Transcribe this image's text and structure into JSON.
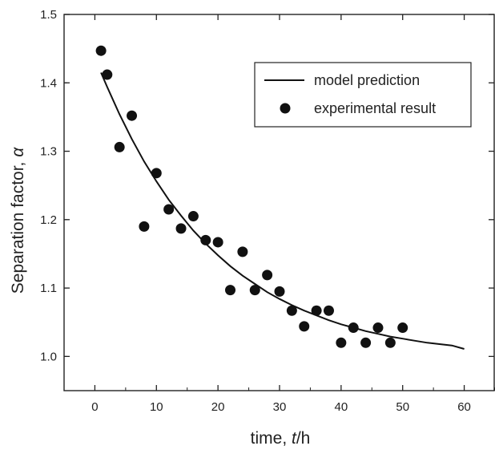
{
  "chart_data": {
    "type": "scatter",
    "title": "",
    "xlabel": {
      "prefix": "time, ",
      "italic": "t",
      "suffix": "/h"
    },
    "ylabel": {
      "prefix": "Separation factor, ",
      "italic": "α"
    },
    "xlim": [
      -5,
      65
    ],
    "ylim": [
      0.95,
      1.5
    ],
    "x_ticks": [
      0,
      10,
      20,
      30,
      40,
      50,
      60
    ],
    "y_ticks": [
      1.0,
      1.1,
      1.2,
      1.3,
      1.4,
      1.5
    ],
    "x_tick_labels": [
      "0",
      "10",
      "20",
      "30",
      "40",
      "50",
      "60"
    ],
    "y_tick_labels": [
      "1.0",
      "1.1",
      "1.2",
      "1.3",
      "1.4",
      "1.5"
    ],
    "grid": false,
    "legend_position": "top-right",
    "series": [
      {
        "name": "model prediction",
        "kind": "line",
        "color": "#111111",
        "x": [
          1,
          2,
          4,
          6,
          8,
          10,
          12,
          14,
          16,
          18,
          20,
          22,
          24,
          26,
          28,
          30,
          32,
          34,
          36,
          38,
          40,
          42,
          44,
          46,
          48,
          50,
          52,
          54,
          56,
          58,
          60
        ],
        "y": [
          1.415,
          1.394,
          1.354,
          1.318,
          1.285,
          1.256,
          1.229,
          1.206,
          1.184,
          1.165,
          1.148,
          1.132,
          1.118,
          1.106,
          1.094,
          1.084,
          1.075,
          1.067,
          1.06,
          1.053,
          1.047,
          1.042,
          1.037,
          1.033,
          1.029,
          1.026,
          1.023,
          1.02,
          1.018,
          1.016,
          1.011
        ]
      },
      {
        "name": "experimental result",
        "kind": "scatter",
        "color": "#111111",
        "x": [
          1,
          2,
          4,
          6,
          8,
          10,
          12,
          14,
          16,
          18,
          20,
          22,
          24,
          26,
          28,
          30,
          32,
          34,
          36,
          38,
          40,
          42,
          44,
          46,
          48,
          50
        ],
        "y": [
          1.447,
          1.412,
          1.306,
          1.352,
          1.19,
          1.268,
          1.215,
          1.187,
          1.205,
          1.17,
          1.167,
          1.097,
          1.153,
          1.097,
          1.119,
          1.095,
          1.067,
          1.044,
          1.067,
          1.067,
          1.02,
          1.042,
          1.02,
          1.042,
          1.02,
          1.042
        ]
      }
    ]
  }
}
